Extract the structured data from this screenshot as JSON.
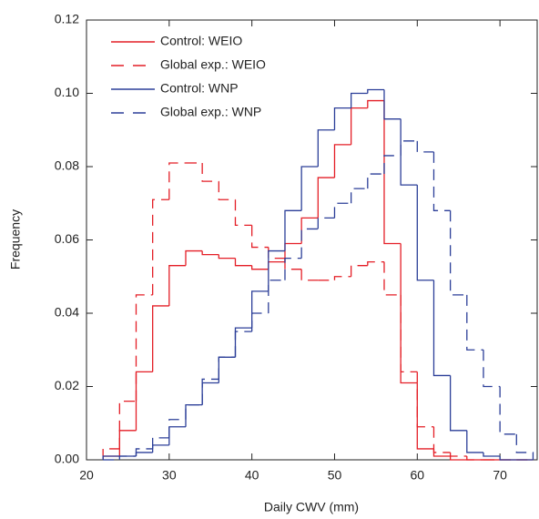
{
  "chart_data": {
    "type": "step-histogram",
    "xlabel": "Daily CWV (mm)",
    "ylabel": "Frequency",
    "bins": [
      22,
      24,
      26,
      28,
      30,
      32,
      34,
      36,
      38,
      40,
      42,
      44,
      46,
      48,
      50,
      52,
      54,
      56,
      58,
      60,
      62,
      64,
      66,
      68,
      70,
      72,
      74
    ],
    "series": [
      {
        "name": "Control: WEIO",
        "color": "#e41e26",
        "line_style": "solid",
        "values": [
          0.001,
          0.008,
          0.024,
          0.042,
          0.053,
          0.057,
          0.056,
          0.055,
          0.053,
          0.052,
          0.054,
          0.059,
          0.066,
          0.077,
          0.086,
          0.096,
          0.098,
          0.059,
          0.021,
          0.003,
          0.001,
          0,
          0,
          0,
          0,
          0
        ]
      },
      {
        "name": "Global exp.: WEIO",
        "color": "#e41e26",
        "line_style": "dashed",
        "values": [
          0.003,
          0.016,
          0.045,
          0.071,
          0.081,
          0.081,
          0.076,
          0.071,
          0.064,
          0.058,
          0.055,
          0.052,
          0.049,
          0.049,
          0.05,
          0.053,
          0.054,
          0.045,
          0.024,
          0.009,
          0.002,
          0.001,
          0,
          0,
          0,
          0
        ]
      },
      {
        "name": "Control: WNP",
        "color": "#2b3e98",
        "line_style": "solid",
        "values": [
          0.001,
          0.001,
          0.002,
          0.004,
          0.009,
          0.015,
          0.021,
          0.028,
          0.036,
          0.046,
          0.057,
          0.068,
          0.08,
          0.09,
          0.096,
          0.1,
          0.101,
          0.093,
          0.075,
          0.049,
          0.023,
          0.008,
          0.002,
          0.001,
          0,
          0
        ]
      },
      {
        "name": "Global exp.: WNP",
        "color": "#2b3e98",
        "line_style": "dashed",
        "values": [
          0,
          0.001,
          0.003,
          0.006,
          0.011,
          0.015,
          0.022,
          0.028,
          0.035,
          0.04,
          0.049,
          0.055,
          0.063,
          0.066,
          0.07,
          0.074,
          0.078,
          0.083,
          0.087,
          0.084,
          0.068,
          0.045,
          0.03,
          0.02,
          0.007,
          0.002
        ]
      }
    ],
    "xlim": [
      20,
      74.5
    ],
    "ylim": [
      0,
      0.12
    ],
    "xticks": [
      20,
      30,
      40,
      50,
      60,
      70
    ],
    "yticks": [
      {
        "value": 0,
        "label": "0.00"
      },
      {
        "value": 0.02,
        "label": "0.02"
      },
      {
        "value": 0.04,
        "label": "0.04"
      },
      {
        "value": 0.06,
        "label": "0.06"
      },
      {
        "value": 0.08,
        "label": "0.08"
      },
      {
        "value": 0.1,
        "label": "0.10"
      },
      {
        "value": 0.12,
        "label": "0.12"
      }
    ],
    "legend": "upper left",
    "grid": false
  }
}
